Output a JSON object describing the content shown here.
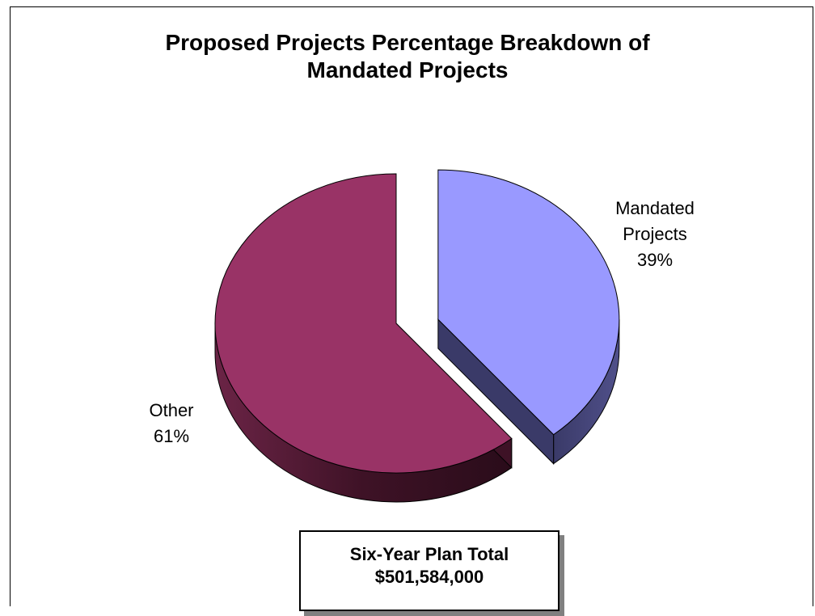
{
  "chart_data": {
    "type": "pie",
    "title_lines": [
      "Proposed Projects Percentage Breakdown of",
      "Mandated Projects"
    ],
    "slices": [
      {
        "label_lines": [
          "Mandated",
          "Projects"
        ],
        "percent_label": "39%",
        "value": 39,
        "color": "#9999ff",
        "side_color": "#3f3f6e",
        "exploded": true
      },
      {
        "label_lines": [
          "Other"
        ],
        "percent_label": "61%",
        "value": 61,
        "color": "#993366",
        "side_color": "#4a1a30",
        "exploded": false
      }
    ],
    "three_d": true,
    "legend": "none",
    "grid": false
  },
  "total_box": {
    "line1": "Six-Year Plan Total",
    "line2": "$501,584,000"
  }
}
